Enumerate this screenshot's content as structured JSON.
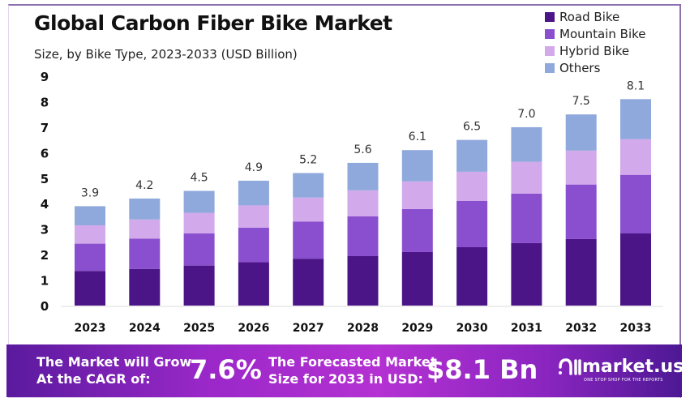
{
  "chart_data": {
    "type": "bar",
    "stacked": true,
    "title": "Global Carbon Fiber Bike Market",
    "subtitle": "Size, by Bike Type, 2023-2033 (USD Billion)",
    "categories": [
      "2023",
      "2024",
      "2025",
      "2026",
      "2027",
      "2028",
      "2029",
      "2030",
      "2031",
      "2032",
      "2033"
    ],
    "series": [
      {
        "name": "Road Bike",
        "color": "#4b1587",
        "values": [
          1.36,
          1.44,
          1.57,
          1.7,
          1.84,
          1.94,
          2.1,
          2.29,
          2.45,
          2.61,
          2.83
        ]
      },
      {
        "name": "Mountain Bike",
        "color": "#8a4fcf",
        "values": [
          1.07,
          1.19,
          1.26,
          1.36,
          1.46,
          1.56,
          1.69,
          1.82,
          1.94,
          2.14,
          2.3
        ]
      },
      {
        "name": "Hybrid Bike",
        "color": "#d2a9eb",
        "values": [
          0.72,
          0.75,
          0.81,
          0.87,
          0.94,
          1.02,
          1.08,
          1.14,
          1.25,
          1.33,
          1.4
        ]
      },
      {
        "name": "Others",
        "color": "#8fa9dc",
        "values": [
          0.75,
          0.82,
          0.86,
          0.97,
          0.96,
          1.08,
          1.23,
          1.25,
          1.36,
          1.42,
          1.57
        ]
      }
    ],
    "totals": [
      "3.9",
      "4.2",
      "4.5",
      "4.9",
      "5.2",
      "5.6",
      "6.1",
      "6.5",
      "7.0",
      "7.5",
      "8.1"
    ],
    "yticks": [
      "0",
      "1",
      "2",
      "3",
      "4",
      "5",
      "6",
      "7",
      "8",
      "9"
    ],
    "ylim": [
      0,
      9
    ],
    "grid": false,
    "legend": "top-right"
  },
  "footer": {
    "cagr_label_1": "The Market will Grow",
    "cagr_label_2": "At the CAGR of:",
    "cagr_value": "7.6%",
    "forecast_label_1": "The Forecasted Market",
    "forecast_label_2": "Size for 2033 in USD:",
    "forecast_value": "$8.1 Bn",
    "logo_text": "market.us",
    "logo_tagline": "ONE STOP SHOP FOR THE REPORTS"
  }
}
